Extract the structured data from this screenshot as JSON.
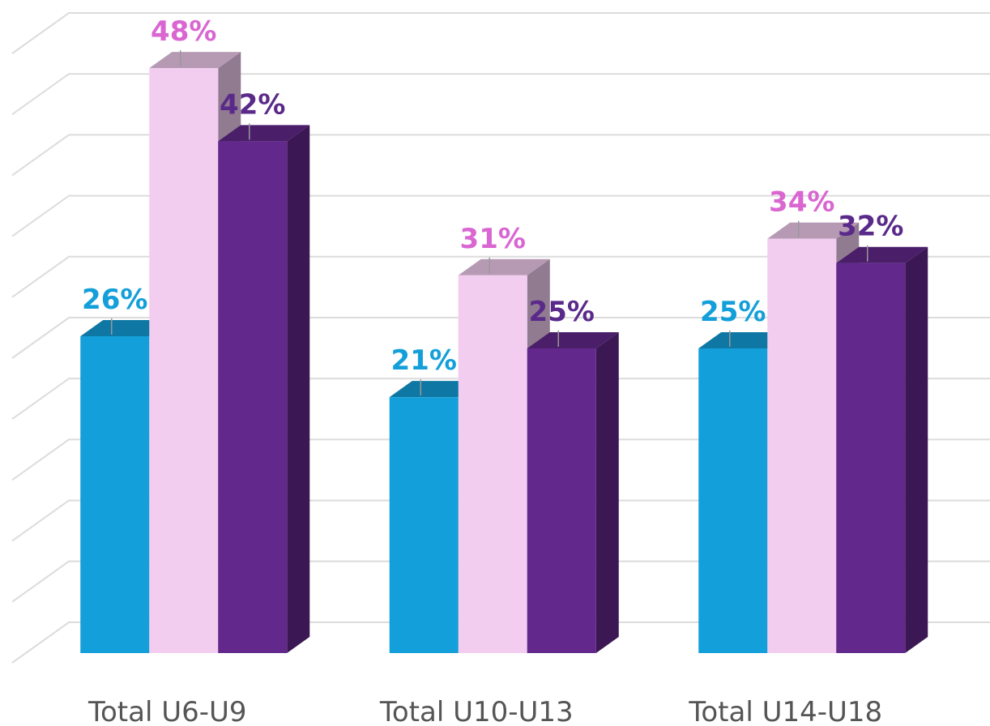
{
  "chart_data": {
    "type": "bar3d",
    "categories": [
      "Total U6-U9",
      "Total U10-U13",
      "Total U14-U18"
    ],
    "series": [
      {
        "color": "#139fd9",
        "label_color": "#139fd9",
        "values": [
          26,
          21,
          25
        ],
        "value_labels": [
          "26%",
          "21%",
          "25%"
        ]
      },
      {
        "color": "#f2cdf0",
        "label_color": "#d966d1",
        "values": [
          48,
          31,
          34
        ],
        "value_labels": [
          "48%",
          "31%",
          "34%"
        ]
      },
      {
        "color": "#62288c",
        "label_color": "#5a2a8a",
        "values": [
          42,
          25,
          32
        ],
        "value_labels": [
          "42%",
          "25%",
          "32%"
        ]
      }
    ],
    "ylim": [
      0,
      50
    ],
    "yticks": [
      0,
      5,
      10,
      15,
      20,
      25,
      30,
      35,
      40,
      45,
      50
    ],
    "grid": true
  }
}
